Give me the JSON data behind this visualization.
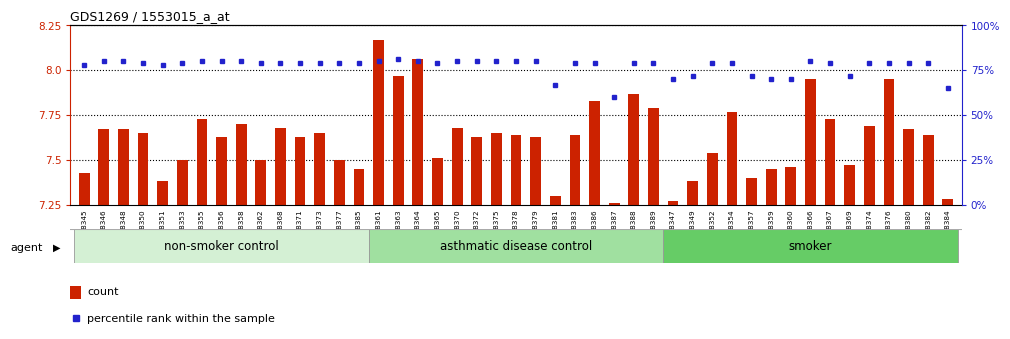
{
  "title": "GDS1269 / 1553015_a_at",
  "samples": [
    "GSM38345",
    "GSM38346",
    "GSM38348",
    "GSM38350",
    "GSM38351",
    "GSM38353",
    "GSM38355",
    "GSM38356",
    "GSM38358",
    "GSM38362",
    "GSM38368",
    "GSM38371",
    "GSM38373",
    "GSM38377",
    "GSM38385",
    "GSM38361",
    "GSM38363",
    "GSM38364",
    "GSM38365",
    "GSM38370",
    "GSM38372",
    "GSM38375",
    "GSM38378",
    "GSM38379",
    "GSM38381",
    "GSM38383",
    "GSM38386",
    "GSM38387",
    "GSM38388",
    "GSM38389",
    "GSM38347",
    "GSM38349",
    "GSM38352",
    "GSM38354",
    "GSM38357",
    "GSM38359",
    "GSM38360",
    "GSM38366",
    "GSM38367",
    "GSM38369",
    "GSM38374",
    "GSM38376",
    "GSM38380",
    "GSM38382",
    "GSM38384"
  ],
  "bar_values": [
    7.43,
    7.67,
    7.67,
    7.65,
    7.38,
    7.5,
    7.73,
    7.63,
    7.7,
    7.5,
    7.68,
    7.63,
    7.65,
    7.5,
    7.45,
    8.17,
    7.97,
    8.06,
    7.51,
    7.68,
    7.63,
    7.65,
    7.64,
    7.63,
    7.3,
    7.64,
    7.83,
    7.26,
    7.87,
    7.79,
    7.27,
    7.38,
    7.54,
    7.77,
    7.4,
    7.45,
    7.46,
    7.95,
    7.73,
    7.47,
    7.69,
    7.95,
    7.67,
    7.64,
    7.28
  ],
  "percentile_values": [
    78,
    80,
    80,
    79,
    78,
    79,
    80,
    80,
    80,
    79,
    79,
    79,
    79,
    79,
    79,
    80,
    81,
    80,
    79,
    80,
    80,
    80,
    80,
    80,
    67,
    79,
    79,
    60,
    79,
    79,
    70,
    72,
    79,
    79,
    72,
    70,
    70,
    80,
    79,
    72,
    79,
    79,
    79,
    79,
    65
  ],
  "groups": [
    {
      "name": "non-smoker control",
      "start": 0,
      "end": 15,
      "color": "#d4f0d4"
    },
    {
      "name": "asthmatic disease control",
      "start": 15,
      "end": 30,
      "color": "#a0e0a0"
    },
    {
      "name": "smoker",
      "start": 30,
      "end": 45,
      "color": "#66cc66"
    }
  ],
  "ylim_left": [
    7.25,
    8.25
  ],
  "ylim_right": [
    0,
    100
  ],
  "yticks_left": [
    7.25,
    7.5,
    7.75,
    8.0,
    8.25
  ],
  "yticks_right": [
    0,
    25,
    50,
    75,
    100
  ],
  "ytick_labels_right": [
    "0%",
    "25%",
    "50%",
    "75%",
    "100%"
  ],
  "bar_color": "#cc2200",
  "dot_color": "#2222cc",
  "background_color": "#ffffff"
}
